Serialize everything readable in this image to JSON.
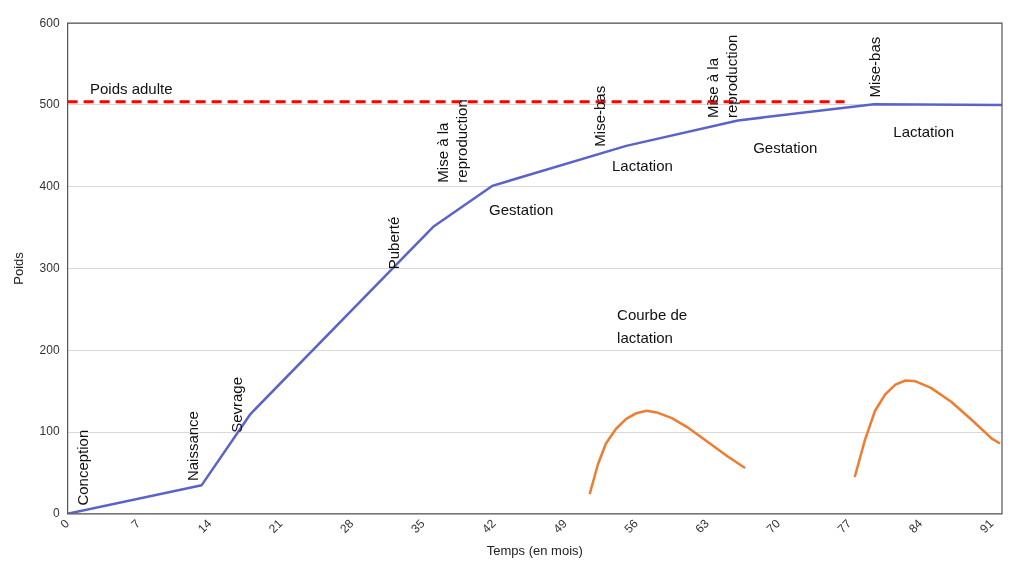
{
  "chart_data": {
    "type": "line",
    "xlabel": "Temps (en mois)",
    "ylabel": "Poids",
    "xlim": [
      0,
      92
    ],
    "xticks": [
      0,
      7,
      14,
      21,
      28,
      35,
      42,
      49,
      56,
      63,
      70,
      77,
      84,
      91
    ],
    "ylim": [
      0,
      600
    ],
    "yticks": [
      0,
      100,
      200,
      300,
      400,
      500,
      600
    ],
    "grid": "y",
    "legend": false,
    "marker": "none",
    "series": [
      {
        "color": "#5a64c8",
        "x": [
          0,
          13.2,
          18,
          36,
          41.8,
          55,
          66,
          79.4,
          92
        ],
        "values": [
          0,
          35,
          122,
          351,
          401,
          450,
          481,
          501,
          500
        ]
      },
      {
        "color": "#ff0000",
        "line_style": "dashed",
        "x": [
          0,
          76.5
        ],
        "values": [
          504,
          504
        ]
      },
      {
        "color": "#ed7d31",
        "x": [
          51.4,
          52.2,
          53,
          54,
          55,
          56,
          57,
          58,
          59.5,
          61,
          63,
          65,
          66.7
        ],
        "values": [
          24,
          60,
          86,
          104,
          116,
          123,
          126,
          124,
          117,
          106,
          88,
          70,
          56
        ]
      },
      {
        "color": "#ed7d31",
        "x": [
          77.5,
          78.5,
          79.5,
          80.5,
          81.5,
          82.5,
          83.5,
          85,
          87,
          89,
          91,
          91.8
        ],
        "values": [
          45,
          90,
          126,
          146,
          158,
          163,
          162,
          154,
          137,
          115,
          92,
          86
        ]
      }
    ],
    "annotations": [
      "Poids adulte",
      "Conception",
      "Naissance",
      "Sevrage",
      "Puberté",
      "Mise à la\nreproduction",
      "Gestation",
      "Mise-bas",
      "Lactation",
      "Mise à la\nreproduction",
      "Gestation",
      "Mise-bas",
      "Lactation",
      "Courbe de\nlactation"
    ]
  }
}
